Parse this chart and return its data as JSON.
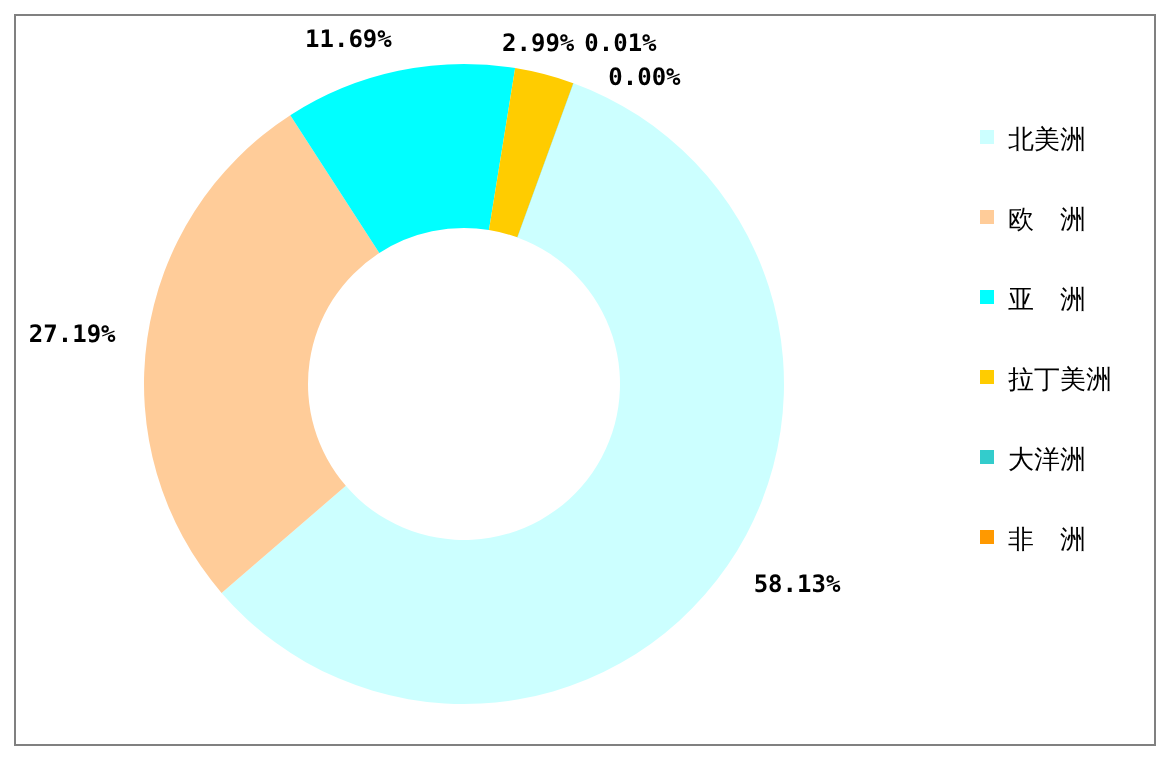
{
  "chart_data": {
    "type": "donut",
    "categories": [
      "北美洲",
      "欧　洲",
      "亚　洲",
      "拉丁美洲",
      "大洋洲",
      "非　洲"
    ],
    "values": [
      58.13,
      27.19,
      11.69,
      2.99,
      0.01,
      0.0
    ],
    "value_labels": [
      "58.13%",
      "27.19%",
      "11.69%",
      "2.99%",
      "0.01%",
      "0.00%"
    ],
    "colors": [
      "#ccffff",
      "#ffcc99",
      "#00ffff",
      "#ffcc00",
      "#33cccc",
      "#ff9900"
    ],
    "legend": "right"
  }
}
